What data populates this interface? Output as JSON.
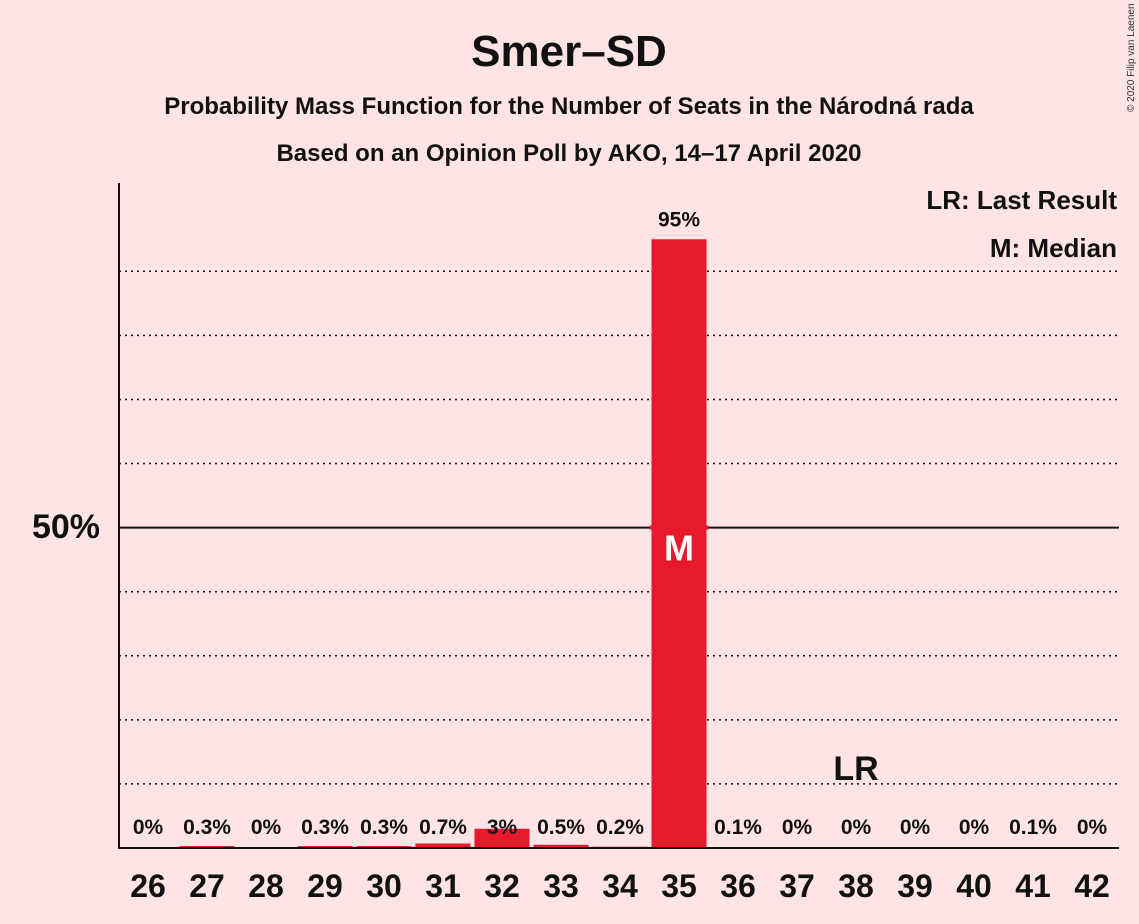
{
  "chart_data": {
    "type": "bar",
    "title": "Smer–SD",
    "subtitle": "Probability Mass Function for the Number of Seats in the Národná rada",
    "subtitle2": "Based on an Opinion Poll by AKO, 14–17 April 2020",
    "copyright": "© 2020 Filip van Laenen",
    "legend": [
      "LR: Last Result",
      "M: Median"
    ],
    "xlabel": "",
    "ylabel": "",
    "ylim": [
      0,
      103
    ],
    "y_gridlines": [
      10,
      20,
      30,
      40,
      60,
      70,
      80,
      90
    ],
    "y_major": {
      "value": 50,
      "label": "50%"
    },
    "categories": [
      "26",
      "27",
      "28",
      "29",
      "30",
      "31",
      "32",
      "33",
      "34",
      "35",
      "36",
      "37",
      "38",
      "39",
      "40",
      "41",
      "42"
    ],
    "values": [
      0,
      0.3,
      0,
      0.3,
      0.3,
      0.7,
      3,
      0.5,
      0.2,
      95,
      0.1,
      0,
      0,
      0,
      0,
      0.1,
      0
    ],
    "labels": [
      "0%",
      "0.3%",
      "0%",
      "0.3%",
      "0.3%",
      "0.7%",
      "3%",
      "0.5%",
      "0.2%",
      "95%",
      "0.1%",
      "0%",
      "0%",
      "0%",
      "0%",
      "0.1%",
      "0%"
    ],
    "median": {
      "category": "35",
      "label": "M"
    },
    "last_result": {
      "category": "38",
      "label": "LR"
    },
    "colors": {
      "bar": "#e8192c",
      "background": "#ffe4e6",
      "text": "#111111"
    }
  }
}
